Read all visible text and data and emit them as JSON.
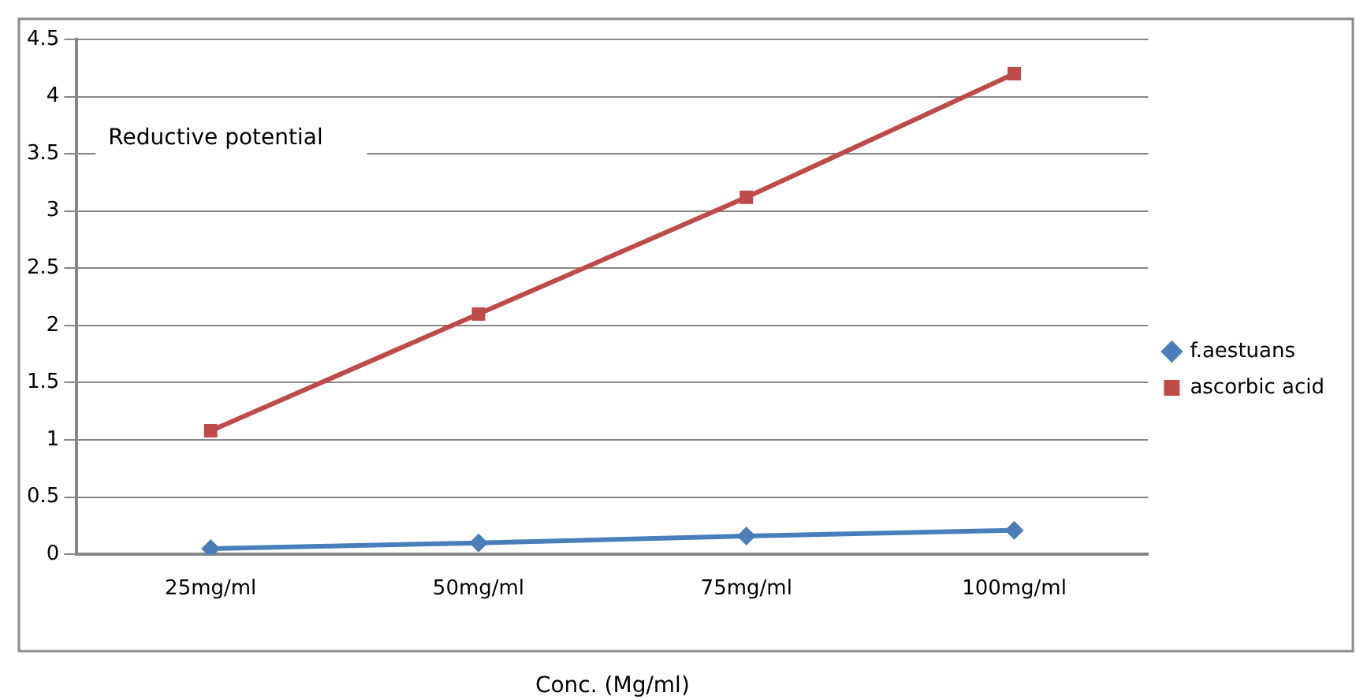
{
  "chart_data": {
    "type": "line",
    "xlabel": "Conc. (Mg/ml)",
    "annotations": [
      "Reductive potential"
    ],
    "categories": [
      "25mg/ml",
      "50mg/ml",
      "75mg/ml",
      "100mg/ml"
    ],
    "series": [
      {
        "name": "f.aestuans",
        "color": "#4a7ebb",
        "marker": "diamond",
        "values": [
          0.05,
          0.1,
          0.16,
          0.21
        ]
      },
      {
        "name": "ascorbic acid",
        "color": "#be4b48",
        "marker": "square",
        "values": [
          1.08,
          2.1,
          3.12,
          4.2
        ]
      }
    ],
    "ylim": [
      0,
      4.5
    ],
    "yticks": [
      0,
      0.5,
      1,
      1.5,
      2,
      2.5,
      3,
      3.5,
      4,
      4.5
    ],
    "grid": "y",
    "legend": "right",
    "line_style": "solid"
  }
}
